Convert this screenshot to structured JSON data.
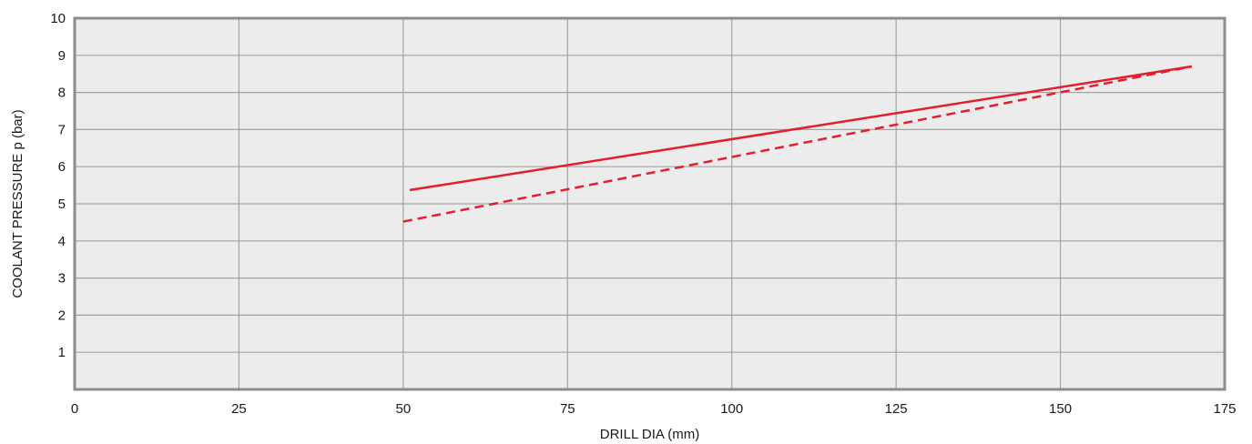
{
  "chart_data": {
    "type": "line",
    "title": "",
    "xlabel": "DRILL DIA (mm)",
    "ylabel": "COOLANT PRESSURE p (bar)",
    "xlim": [
      0,
      175
    ],
    "ylim": [
      0,
      10
    ],
    "x_ticks": [
      "0",
      "25",
      "50",
      "75",
      "100",
      "125",
      "150",
      "175"
    ],
    "y_ticks": [
      "1",
      "2",
      "3",
      "4",
      "5",
      "6",
      "7",
      "8",
      "9",
      "10"
    ],
    "grid": true,
    "legend": "none",
    "series": [
      {
        "style": "solid",
        "color": "#e31e2d",
        "x": [
          51,
          170
        ],
        "y": [
          5.37,
          8.7
        ]
      },
      {
        "style": "dashed",
        "color": "#e31e2d",
        "x": [
          50,
          170
        ],
        "y": [
          4.52,
          8.7
        ]
      }
    ]
  },
  "colors": {
    "plot_background": "#ececec",
    "grid": "#a3a3a3",
    "frame": "#8c8c8c"
  }
}
